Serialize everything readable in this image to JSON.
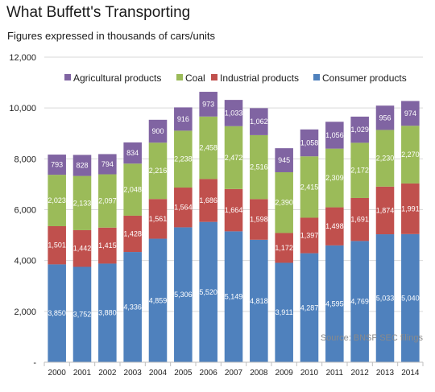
{
  "chart_data": {
    "type": "bar",
    "stacked": true,
    "title": "What Buffett's Transporting",
    "subtitle": "Figures expressed in thousands of cars/units",
    "source": "Source: BNSF SEC filings",
    "categories": [
      "2000",
      "2001",
      "2002",
      "2003",
      "2004",
      "2005",
      "2006",
      "2007",
      "2008",
      "2009",
      "2010",
      "2011",
      "2012",
      "2013",
      "2014"
    ],
    "ylim": [
      0,
      12000
    ],
    "yticks": [
      0,
      2000,
      4000,
      6000,
      8000,
      10000,
      12000
    ],
    "ytick_labels": [
      "-",
      "2,000",
      "4,000",
      "6,000",
      "8,000",
      "10,000",
      "12,000"
    ],
    "grid": true,
    "legend_position": "top",
    "series": [
      {
        "name": "Consumer products",
        "color": "#4f81bd",
        "values": [
          3850,
          3752,
          3880,
          4336,
          4859,
          5306,
          5520,
          5149,
          4818,
          3911,
          4287,
          4595,
          4769,
          5033,
          5040
        ]
      },
      {
        "name": "Industrial products",
        "color": "#c0504d",
        "values": [
          1501,
          1442,
          1415,
          1428,
          1561,
          1564,
          1686,
          1664,
          1598,
          1172,
          1397,
          1498,
          1691,
          1874,
          1991
        ]
      },
      {
        "name": "Coal",
        "color": "#9bbb59",
        "values": [
          2023,
          2133,
          2097,
          2048,
          2216,
          2238,
          2458,
          2472,
          2516,
          2390,
          2415,
          2309,
          2172,
          2230,
          2270
        ]
      },
      {
        "name": "Agricultural products",
        "color": "#8064a2",
        "values": [
          793,
          828,
          794,
          834,
          900,
          916,
          973,
          1033,
          1062,
          945,
          1058,
          1056,
          1029,
          956,
          974
        ]
      }
    ],
    "legend_order": [
      "Agricultural products",
      "Coal",
      "Industrial products",
      "Consumer products"
    ]
  }
}
